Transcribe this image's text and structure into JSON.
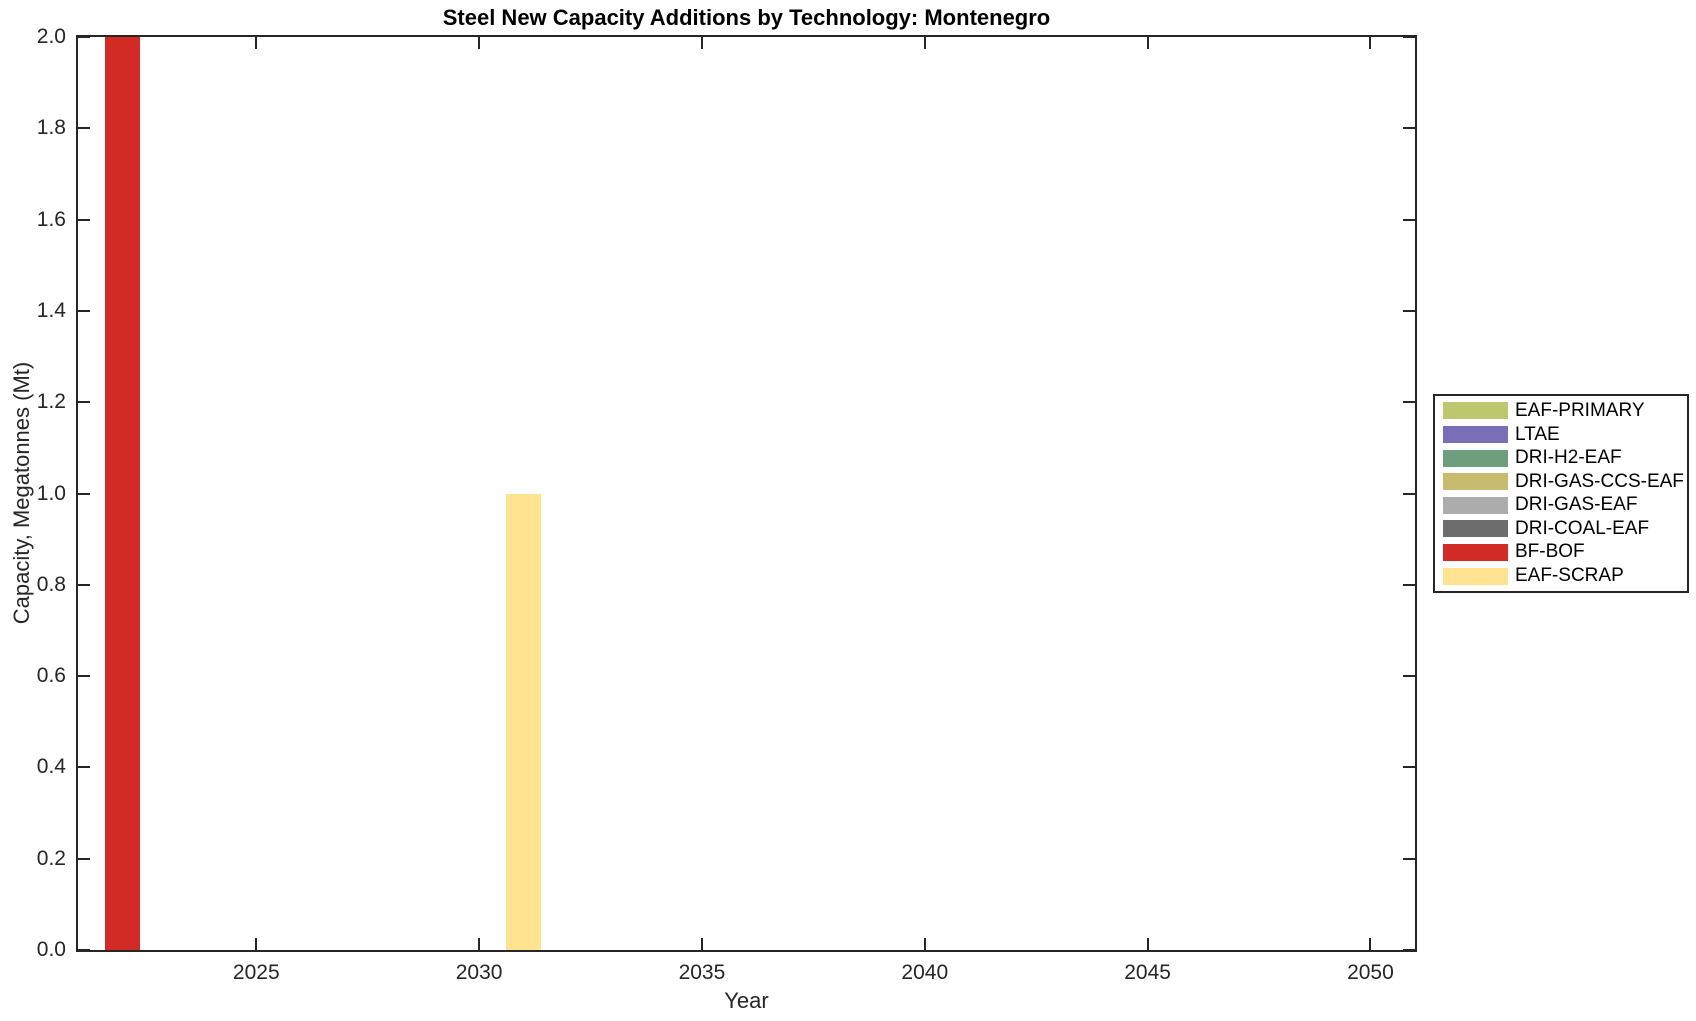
{
  "figure": {
    "background": "#ffffff",
    "axis_color": "#262626"
  },
  "chart_data": {
    "type": "bar",
    "title": "Steel New Capacity Additions by Technology: Montenegro",
    "xlabel": "Year",
    "ylabel": "Capacity, Megatonnes (Mt)",
    "xlim": [
      2021,
      2051
    ],
    "ylim": [
      0.0,
      2.0
    ],
    "xticks": [
      2025,
      2030,
      2035,
      2040,
      2045,
      2050
    ],
    "yticks": [
      0.0,
      0.2,
      0.4,
      0.6,
      0.8,
      1.0,
      1.2,
      1.4,
      1.6,
      1.8,
      2.0
    ],
    "ytick_decimals": 1,
    "bar_width_years": 0.8,
    "grid": false,
    "legend_position": "outside-right",
    "series": [
      {
        "name": "EAF-PRIMARY",
        "color": "#bdc76e",
        "bars": []
      },
      {
        "name": "LTAE",
        "color": "#7a6fb6",
        "bars": []
      },
      {
        "name": "DRI-H2-EAF",
        "color": "#6f9e7d",
        "bars": []
      },
      {
        "name": "DRI-GAS-CCS-EAF",
        "color": "#c8ba6e",
        "bars": []
      },
      {
        "name": "DRI-GAS-EAF",
        "color": "#acacac",
        "bars": []
      },
      {
        "name": "DRI-COAL-EAF",
        "color": "#6d6d6d",
        "bars": []
      },
      {
        "name": "BF-BOF",
        "color": "#d22b26",
        "bars": [
          {
            "year": 2022,
            "value": 2.0
          }
        ]
      },
      {
        "name": "EAF-SCRAP",
        "color": "#ffe391",
        "bars": [
          {
            "year": 2031,
            "value": 1.0
          }
        ]
      }
    ]
  }
}
